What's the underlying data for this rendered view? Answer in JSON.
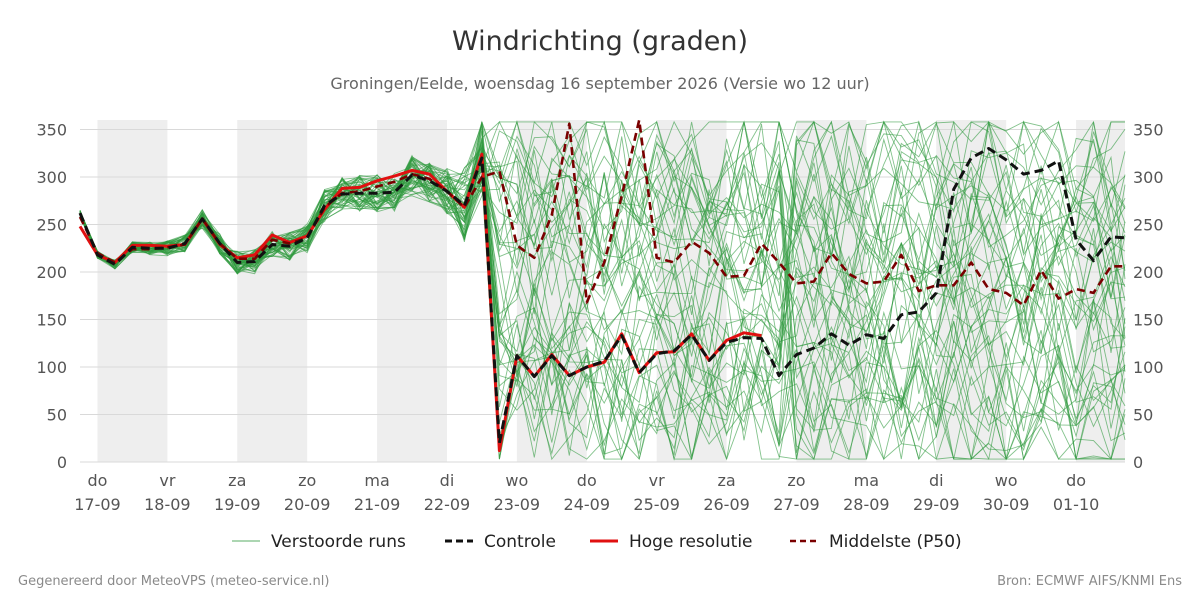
{
  "footer": {
    "left": "Gegenereerd door MeteoVPS (meteo-service.nl)",
    "right": "Bron: ECMWF AIFS/KNMI Ens"
  },
  "chart_data": {
    "type": "line",
    "title": "Windrichting (graden)",
    "subtitle": "Groningen/Eelde, woensdag 16 september 2026 (Versie wo 12 uur)",
    "ylim": [
      0,
      360
    ],
    "yticks": [
      0,
      50,
      100,
      150,
      200,
      250,
      300,
      350
    ],
    "xlim": [
      -0.25,
      14.7
    ],
    "x_unit": "days from 17-09",
    "grid": true,
    "legend_position": "bottom",
    "xtick_labels": [
      {
        "x": 0,
        "day": "do",
        "date": "17-09"
      },
      {
        "x": 1,
        "day": "vr",
        "date": "18-09"
      },
      {
        "x": 2,
        "day": "za",
        "date": "19-09"
      },
      {
        "x": 3,
        "day": "zo",
        "date": "20-09"
      },
      {
        "x": 4,
        "day": "ma",
        "date": "21-09"
      },
      {
        "x": 5,
        "day": "di",
        "date": "22-09"
      },
      {
        "x": 6,
        "day": "wo",
        "date": "23-09"
      },
      {
        "x": 7,
        "day": "do",
        "date": "24-09"
      },
      {
        "x": 8,
        "day": "vr",
        "date": "25-09"
      },
      {
        "x": 9,
        "day": "za",
        "date": "26-09"
      },
      {
        "x": 10,
        "day": "zo",
        "date": "27-09"
      },
      {
        "x": 11,
        "day": "ma",
        "date": "28-09"
      },
      {
        "x": 12,
        "day": "di",
        "date": "29-09"
      },
      {
        "x": 13,
        "day": "wo",
        "date": "30-09"
      },
      {
        "x": 14,
        "day": "do",
        "date": "01-10"
      }
    ],
    "night_bands": [
      [
        0,
        1
      ],
      [
        2,
        3
      ],
      [
        4,
        5
      ],
      [
        6,
        7
      ],
      [
        8,
        9
      ],
      [
        10,
        11
      ],
      [
        12,
        13
      ],
      [
        14,
        14.7
      ]
    ],
    "colors": {
      "ensemble": "#2e9a3e",
      "control": "#111111",
      "hires": "#e01010",
      "median": "#7a0000",
      "band": "#eeeeee",
      "grid": "#d9d9d9"
    },
    "legend": [
      {
        "key": "ensemble",
        "label": "Verstoorde runs"
      },
      {
        "key": "control",
        "label": "Controle"
      },
      {
        "key": "hires",
        "label": "Hoge resolutie"
      },
      {
        "key": "median",
        "label": "Middelste (P50)"
      }
    ],
    "ensemble_count": 50,
    "series": [
      {
        "name": "Controle",
        "key": "control",
        "x": [
          -0.25,
          0,
          0.25,
          0.5,
          0.75,
          1,
          1.25,
          1.5,
          1.75,
          2,
          2.25,
          2.5,
          2.75,
          3,
          3.25,
          3.5,
          3.75,
          4,
          4.25,
          4.5,
          4.75,
          5,
          5.25,
          5.5,
          5.75,
          6,
          6.25,
          6.5,
          6.75,
          7,
          7.25,
          7.5,
          7.75,
          8,
          8.25,
          8.5,
          8.75,
          9,
          9.25,
          9.5,
          9.75,
          10,
          10.25,
          10.5,
          10.75,
          11,
          11.25,
          11.5,
          11.75,
          12,
          12.25,
          12.5,
          12.75,
          13,
          13.25,
          13.5,
          13.75,
          14,
          14.25,
          14.5,
          14.7
        ],
        "y": [
          262,
          218,
          208,
          226,
          225,
          225,
          230,
          256,
          230,
          210,
          211,
          229,
          227,
          236,
          270,
          282,
          283,
          283,
          284,
          302,
          296,
          285,
          270,
          320,
          20,
          112,
          90,
          112,
          91,
          100,
          106,
          133,
          94,
          114,
          117,
          134,
          107,
          126,
          131,
          130,
          91,
          113,
          120,
          135,
          123,
          134,
          130,
          155,
          158,
          178,
          287,
          320,
          330,
          318,
          303,
          307,
          317,
          234,
          212,
          237,
          236
        ]
      },
      {
        "name": "Hoge resolutie",
        "key": "hires",
        "x": [
          -0.25,
          0,
          0.25,
          0.5,
          0.75,
          1,
          1.25,
          1.5,
          1.75,
          2,
          2.25,
          2.5,
          2.75,
          3,
          3.25,
          3.5,
          3.75,
          4,
          4.25,
          4.5,
          4.75,
          5,
          5.25,
          5.5,
          5.75,
          6,
          6.25,
          6.5,
          6.75,
          7,
          7.25,
          7.5,
          7.75,
          8,
          8.25,
          8.5,
          8.75,
          9,
          9.25,
          9.5
        ],
        "y": [
          248,
          218,
          210,
          228,
          228,
          227,
          229,
          256,
          229,
          215,
          218,
          239,
          231,
          238,
          266,
          288,
          289,
          296,
          301,
          307,
          303,
          285,
          268,
          324,
          12,
          112,
          90,
          113,
          91,
          100,
          105,
          135,
          94,
          115,
          116,
          135,
          107,
          128,
          136,
          133
        ]
      },
      {
        "name": "Middelste (P50)",
        "key": "median",
        "x": [
          -0.25,
          0,
          0.25,
          0.5,
          0.75,
          1,
          1.25,
          1.5,
          1.75,
          2,
          2.25,
          2.5,
          2.75,
          3,
          3.25,
          3.5,
          3.75,
          4,
          4.25,
          4.5,
          4.75,
          5,
          5.25,
          5.5,
          5.75,
          6,
          6.25,
          6.5,
          6.75,
          7,
          7.25,
          7.5,
          7.75,
          8,
          8.25,
          8.5,
          8.75,
          9,
          9.25,
          9.5,
          9.75,
          10,
          10.25,
          10.5,
          10.75,
          11,
          11.25,
          11.5,
          11.75,
          12,
          12.25,
          12.5,
          12.75,
          13,
          13.25,
          13.5,
          13.75,
          14,
          14.25,
          14.5,
          14.7
        ],
        "y": [
          258,
          220,
          210,
          224,
          224,
          226,
          229,
          256,
          230,
          214,
          214,
          234,
          230,
          236,
          268,
          283,
          285,
          290,
          295,
          303,
          298,
          285,
          268,
          300,
          306,
          228,
          215,
          260,
          356,
          168,
          210,
          280,
          360,
          215,
          210,
          232,
          220,
          195,
          196,
          230,
          210,
          188,
          190,
          220,
          198,
          188,
          190,
          218,
          180,
          186,
          186,
          210,
          182,
          178,
          165,
          202,
          172,
          182,
          178,
          206,
          206
        ]
      }
    ]
  }
}
